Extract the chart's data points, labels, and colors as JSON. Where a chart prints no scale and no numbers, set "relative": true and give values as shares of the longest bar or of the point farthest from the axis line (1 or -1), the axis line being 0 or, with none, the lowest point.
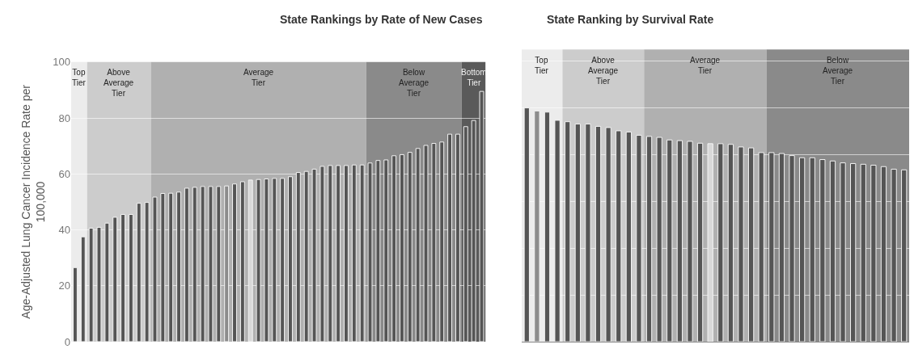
{
  "chart_data": [
    {
      "type": "bar",
      "title": "State Rankings by Rate of New Cases",
      "ylabel": "Age-Adjusted Lung Cancer Incidence Rate per\n100,000",
      "categories": [
        null,
        null,
        null,
        null,
        null,
        null,
        null,
        null,
        null,
        null,
        null,
        null,
        null,
        null,
        null,
        null,
        null,
        null,
        null,
        null,
        null,
        null,
        null,
        null,
        null,
        null,
        null,
        null,
        null,
        null,
        null,
        null,
        null,
        null,
        null,
        null,
        null,
        null,
        null,
        null,
        null,
        null,
        null,
        null,
        null,
        null,
        null,
        null,
        null,
        null,
        null,
        null
      ],
      "values": [
        26.5,
        37.5,
        40.6,
        40.9,
        42.4,
        44.5,
        45.5,
        45.5,
        49.5,
        49.8,
        51.7,
        53.0,
        53.1,
        53.5,
        54.9,
        55.2,
        55.5,
        55.5,
        55.5,
        55.7,
        56.4,
        57.2,
        57.8,
        58.0,
        58.2,
        58.4,
        58.4,
        59.0,
        60.5,
        60.9,
        61.7,
        62.7,
        63.0,
        63.0,
        63.0,
        63.2,
        63.2,
        63.9,
        64.8,
        65.0,
        66.5,
        66.9,
        67.7,
        69.1,
        70.2,
        70.9,
        71.4,
        74.2,
        74.2,
        76.9,
        79.1,
        89.5
      ],
      "colors": [
        "#555555",
        "#555555",
        "#555555",
        "#555555",
        "#555555",
        "#555555",
        "#555555",
        "#555555",
        "#555555",
        "#555555",
        "#555555",
        "#555555",
        "#555555",
        "#555555",
        "#555555",
        "#555555",
        "#555555",
        "#555555",
        "#555555",
        "#8c8c8c",
        "#555555",
        "#555555",
        "#d8d8d8",
        "#555555",
        "#555555",
        "#555555",
        "#555555",
        "#555555",
        "#555555",
        "#555555",
        "#555555",
        "#555555",
        "#555555",
        "#555555",
        "#555555",
        "#555555",
        "#555555",
        "#555555",
        "#555555",
        "#555555",
        "#555555",
        "#555555",
        "#555555",
        "#555555",
        "#555555",
        "#555555",
        "#555555",
        "#555555",
        "#555555",
        "#555555",
        "#555555",
        "#555555"
      ],
      "ylim": [
        0,
        100
      ],
      "yticks": [
        0,
        20,
        40,
        60,
        80,
        100
      ],
      "grid": "y",
      "tick_labels": "y",
      "annotations": [
        "Top\nTier",
        "Above\nAverage\nTier",
        "Average\nTier",
        "Below\nAverage\nTier",
        "Bottom\nTier"
      ]
    },
    {
      "type": "bar",
      "title": "State Ranking by Survival Rate",
      "relative": true,
      "categories": [
        null,
        null,
        null,
        null,
        null,
        null,
        null,
        null,
        null,
        null,
        null,
        null,
        null,
        null,
        null,
        null,
        null,
        null,
        null,
        null,
        null,
        null,
        null,
        null,
        null,
        null,
        null,
        null,
        null,
        null,
        null,
        null,
        null,
        null,
        null,
        null,
        null,
        null
      ],
      "values": [
        1.0,
        0.987,
        0.982,
        0.947,
        0.941,
        0.931,
        0.931,
        0.921,
        0.916,
        0.902,
        0.897,
        0.883,
        0.878,
        0.874,
        0.863,
        0.86,
        0.857,
        0.849,
        0.847,
        0.847,
        0.844,
        0.833,
        0.829,
        0.809,
        0.809,
        0.805,
        0.796,
        0.787,
        0.787,
        0.779,
        0.773,
        0.765,
        0.762,
        0.759,
        0.755,
        0.749,
        0.738,
        0.735
      ],
      "colors": [
        "#555555",
        "#8c8c8c",
        "#555555",
        "#555555",
        "#555555",
        "#555555",
        "#555555",
        "#555555",
        "#555555",
        "#555555",
        "#555555",
        "#555555",
        "#555555",
        "#555555",
        "#555555",
        "#555555",
        "#555555",
        "#555555",
        "#d8d8d8",
        "#555555",
        "#555555",
        "#555555",
        "#555555",
        "#555555",
        "#555555",
        "#555555",
        "#555555",
        "#555555",
        "#555555",
        "#555555",
        "#555555",
        "#555555",
        "#555555",
        "#555555",
        "#555555",
        "#555555",
        "#555555",
        "#555555"
      ],
      "grid": "y",
      "tick_labels": false,
      "annotations": [
        "Top\nTier",
        "Above\nAverage\nTier",
        "Average\nTier",
        "Below\nAverage\nTier"
      ]
    }
  ]
}
